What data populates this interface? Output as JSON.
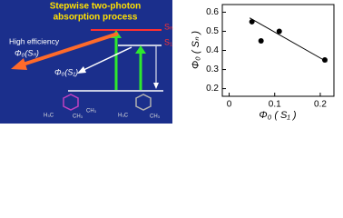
{
  "diagram": {
    "title_lines": [
      "Stepwise two-photon",
      "absorption process"
    ],
    "level_upper": "Sₙ",
    "level_lower": "S₁",
    "efficiency": "High efficiency",
    "yield_upper": "Φ₀(Sₙ)",
    "yield_lower": "Φ₀(S₁)",
    "molecule_labels": [
      "H₃C",
      "CH₃",
      "CH₃",
      "H₃C",
      "CH₃"
    ]
  },
  "chart_data": {
    "type": "scatter",
    "x_label": "Φ₀ ( S₁ )",
    "y_label": "Φ₀ ( Sₙ )",
    "x": [
      0.05,
      0.07,
      0.11,
      0.21
    ],
    "values": [
      0.55,
      0.45,
      0.5,
      0.35
    ],
    "color": "#000000",
    "fit_line": {
      "x": [
        0.045,
        0.215
      ],
      "y": [
        0.57,
        0.34
      ]
    },
    "xlim": [
      -0.015,
      0.23
    ],
    "ylim": [
      0.16,
      0.64
    ],
    "xticks": [
      {
        "value": 0,
        "label": "0"
      },
      0.1,
      0.2
    ],
    "yticks": [
      0.2,
      0.3,
      0.4,
      0.5,
      0.6
    ]
  }
}
